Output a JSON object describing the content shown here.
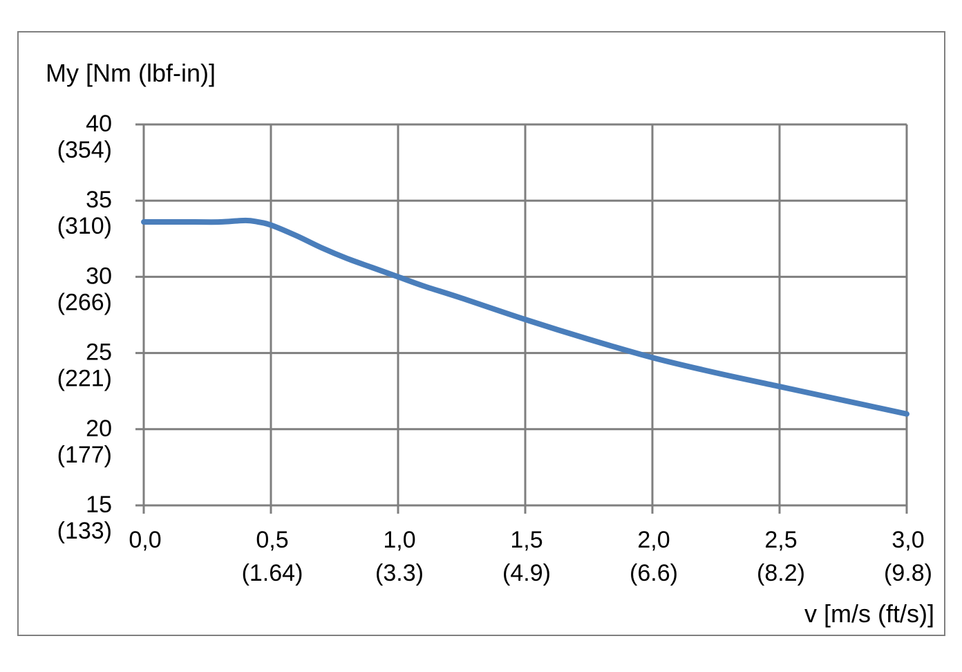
{
  "chart_data": {
    "type": "line",
    "ylabel": "My [Nm (lbf-in)]",
    "xlabel": "v [m/s (ft/s)]",
    "xlim": [
      0,
      3
    ],
    "ylim": [
      15,
      40
    ],
    "grid": true,
    "x_ticks": [
      {
        "value": 0.0,
        "label": "0,0",
        "sub": ""
      },
      {
        "value": 0.5,
        "label": "0,5",
        "sub": "(1.64)"
      },
      {
        "value": 1.0,
        "label": "1,0",
        "sub": "(3.3)"
      },
      {
        "value": 1.5,
        "label": "1,5",
        "sub": "(4.9)"
      },
      {
        "value": 2.0,
        "label": "2,0",
        "sub": "(6.6)"
      },
      {
        "value": 2.5,
        "label": "2,5",
        "sub": "(8.2)"
      },
      {
        "value": 3.0,
        "label": "3,0",
        "sub": "(9.8)"
      }
    ],
    "y_ticks": [
      {
        "value": 40,
        "label": "40",
        "sub": "(354)"
      },
      {
        "value": 35,
        "label": "35",
        "sub": "(310)"
      },
      {
        "value": 30,
        "label": "30",
        "sub": "(266)"
      },
      {
        "value": 25,
        "label": "25",
        "sub": "(221)"
      },
      {
        "value": 20,
        "label": "20",
        "sub": "(177)"
      },
      {
        "value": 15,
        "label": "15",
        "sub": "(133)"
      }
    ],
    "series": [
      {
        "color": "#4a7ebb",
        "x": [
          0.0,
          0.1,
          0.2,
          0.3,
          0.4,
          0.45,
          0.5,
          0.6,
          0.7,
          0.8,
          0.9,
          1.0,
          1.1,
          1.25,
          1.5,
          1.75,
          2.0,
          2.25,
          2.5,
          2.75,
          3.0
        ],
        "y": [
          33.6,
          33.6,
          33.6,
          33.6,
          33.7,
          33.6,
          33.4,
          32.7,
          31.9,
          31.2,
          30.6,
          30.0,
          29.4,
          28.6,
          27.2,
          25.9,
          24.7,
          23.7,
          22.8,
          21.9,
          21.0
        ]
      }
    ]
  }
}
